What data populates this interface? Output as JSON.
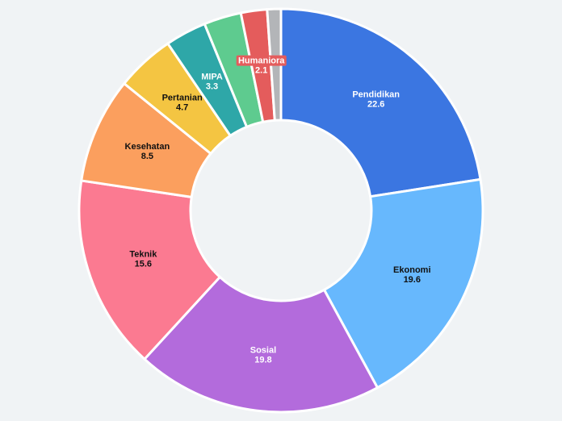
{
  "chart_data": {
    "type": "pie",
    "donut": true,
    "title": "",
    "legend": "none",
    "slices": [
      {
        "label": "Pendidikan",
        "value": 22.6,
        "value_label": "22.6",
        "color": "#3b76e1",
        "text_color": "#ffffff",
        "show_label": true
      },
      {
        "label": "Ekonomi",
        "value": 19.6,
        "value_label": "19.6",
        "color": "#67b8fd",
        "text_color": "#111111",
        "show_label": true
      },
      {
        "label": "Sosial",
        "value": 19.8,
        "value_label": "19.8",
        "color": "#b36bdc",
        "text_color": "#ffffff",
        "show_label": true
      },
      {
        "label": "Teknik",
        "value": 15.6,
        "value_label": "15.6",
        "color": "#fb7a91",
        "text_color": "#111111",
        "show_label": true
      },
      {
        "label": "Kesehatan",
        "value": 8.5,
        "value_label": "8.5",
        "color": "#fb9f5e",
        "text_color": "#111111",
        "show_label": true
      },
      {
        "label": "Pertanian",
        "value": 4.7,
        "value_label": "4.7",
        "color": "#f4c542",
        "text_color": "#111111",
        "show_label": true
      },
      {
        "label": "MIPA",
        "value": 3.3,
        "value_label": "3.3",
        "color": "#2ea7a8",
        "text_color": "#ffffff",
        "show_label": true
      },
      {
        "label": "",
        "value": 3.0,
        "value_label": "",
        "color": "#5ecb8f",
        "text_color": "#ffffff",
        "show_label": false
      },
      {
        "label": "Humaniora",
        "value": 2.1,
        "value_label": "2.1",
        "color": "#e45c5c",
        "text_color": "#ffffff",
        "show_label": true
      },
      {
        "label": "",
        "value": 1.1,
        "value_label": "",
        "color": "#b3b5b8",
        "text_color": "#ffffff",
        "show_label": false
      }
    ]
  }
}
